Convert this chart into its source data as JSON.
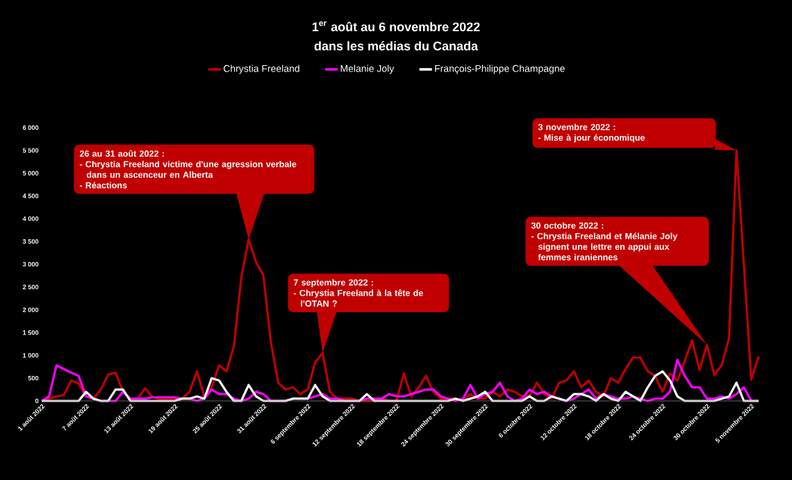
{
  "chart_data": {
    "type": "line",
    "title": "1$^{er}$ août au 6 novembre 2022",
    "subtitle": "dans les médias du Canada",
    "x": [
      "2022-08-01",
      "2022-08-02",
      "2022-08-03",
      "2022-08-04",
      "2022-08-05",
      "2022-08-06",
      "2022-08-07",
      "2022-08-08",
      "2022-08-09",
      "2022-08-10",
      "2022-08-11",
      "2022-08-12",
      "2022-08-13",
      "2022-08-14",
      "2022-08-15",
      "2022-08-16",
      "2022-08-17",
      "2022-08-18",
      "2022-08-19",
      "2022-08-20",
      "2022-08-21",
      "2022-08-22",
      "2022-08-23",
      "2022-08-24",
      "2022-08-25",
      "2022-08-26",
      "2022-08-27",
      "2022-08-28",
      "2022-08-29",
      "2022-08-30",
      "2022-08-31",
      "2022-09-01",
      "2022-09-02",
      "2022-09-03",
      "2022-09-04",
      "2022-09-05",
      "2022-09-06",
      "2022-09-07",
      "2022-09-08",
      "2022-09-09",
      "2022-09-10",
      "2022-09-11",
      "2022-09-12",
      "2022-09-13",
      "2022-09-14",
      "2022-09-15",
      "2022-09-16",
      "2022-09-17",
      "2022-09-18",
      "2022-09-19",
      "2022-09-20",
      "2022-09-21",
      "2022-09-22",
      "2022-09-23",
      "2022-09-24",
      "2022-09-25",
      "2022-09-26",
      "2022-09-27",
      "2022-09-28",
      "2022-09-29",
      "2022-09-30",
      "2022-10-01",
      "2022-10-02",
      "2022-10-03",
      "2022-10-04",
      "2022-10-05",
      "2022-10-06",
      "2022-10-07",
      "2022-10-08",
      "2022-10-09",
      "2022-10-10",
      "2022-10-11",
      "2022-10-12",
      "2022-10-13",
      "2022-10-14",
      "2022-10-15",
      "2022-10-16",
      "2022-10-17",
      "2022-10-18",
      "2022-10-19",
      "2022-10-20",
      "2022-10-21",
      "2022-10-22",
      "2022-10-23",
      "2022-10-24",
      "2022-10-25",
      "2022-10-26",
      "2022-10-27",
      "2022-10-28",
      "2022-10-29",
      "2022-10-30",
      "2022-10-31",
      "2022-11-01",
      "2022-11-02",
      "2022-11-03",
      "2022-11-04",
      "2022-11-05",
      "2022-11-06"
    ],
    "series": [
      {
        "name": "Chrystia Freeland",
        "color": "#c00000",
        "values": [
          0,
          50,
          100,
          130,
          450,
          380,
          100,
          50,
          250,
          580,
          620,
          200,
          50,
          50,
          280,
          80,
          50,
          50,
          50,
          50,
          200,
          650,
          100,
          300,
          780,
          650,
          1200,
          2700,
          3550,
          3050,
          2750,
          1300,
          400,
          250,
          300,
          150,
          250,
          850,
          1050,
          200,
          50,
          50,
          50,
          0,
          0,
          0,
          50,
          0,
          0,
          600,
          100,
          300,
          550,
          200,
          50,
          50,
          50,
          0,
          150,
          50,
          50,
          200,
          100,
          250,
          200,
          100,
          100,
          400,
          150,
          50,
          400,
          450,
          650,
          300,
          450,
          200,
          100,
          500,
          400,
          700,
          950,
          950,
          650,
          550,
          200,
          600,
          450,
          880,
          1330,
          680,
          1230,
          570,
          780,
          1380,
          5500,
          3000,
          470,
          980
        ]
      },
      {
        "name": "Melanie Joly",
        "color": "#ff00ff",
        "values": [
          0,
          100,
          780,
          700,
          620,
          550,
          100,
          50,
          0,
          0,
          0,
          200,
          50,
          50,
          50,
          80,
          80,
          80,
          80,
          50,
          50,
          0,
          50,
          250,
          150,
          150,
          50,
          0,
          50,
          200,
          150,
          0,
          0,
          0,
          50,
          50,
          50,
          100,
          150,
          50,
          50,
          0,
          0,
          0,
          50,
          50,
          50,
          150,
          100,
          100,
          150,
          200,
          250,
          250,
          100,
          50,
          0,
          50,
          350,
          50,
          150,
          200,
          400,
          100,
          0,
          50,
          250,
          150,
          200,
          100,
          50,
          0,
          50,
          150,
          250,
          50,
          150,
          100,
          50,
          50,
          100,
          50,
          0,
          50,
          50,
          200,
          900,
          550,
          300,
          300,
          50,
          50,
          100,
          50,
          150,
          300,
          0,
          0
        ]
      },
      {
        "name": "François-Philippe Champagne",
        "color": "#ffffff",
        "values": [
          0,
          0,
          0,
          0,
          0,
          0,
          200,
          50,
          0,
          0,
          250,
          250,
          0,
          0,
          0,
          0,
          0,
          0,
          0,
          50,
          50,
          100,
          50,
          500,
          450,
          200,
          0,
          0,
          350,
          100,
          0,
          0,
          0,
          0,
          50,
          50,
          50,
          350,
          100,
          0,
          0,
          0,
          0,
          0,
          150,
          0,
          0,
          0,
          0,
          0,
          0,
          0,
          0,
          0,
          0,
          0,
          50,
          0,
          50,
          100,
          200,
          0,
          0,
          0,
          0,
          0,
          100,
          0,
          0,
          100,
          50,
          0,
          150,
          150,
          100,
          0,
          150,
          50,
          0,
          200,
          100,
          0,
          300,
          550,
          650,
          450,
          100,
          0,
          0,
          0,
          0,
          0,
          50,
          100,
          400,
          0,
          0,
          0
        ]
      }
    ],
    "xticks": [
      {
        "value": "2022-08-01",
        "label": "1 août 2022"
      },
      {
        "value": "2022-08-07",
        "label": "7 août 2022"
      },
      {
        "value": "2022-08-13",
        "label": "13 août 2022"
      },
      {
        "value": "2022-08-19",
        "label": "19 août 2022"
      },
      {
        "value": "2022-08-25",
        "label": "25 août 2022"
      },
      {
        "value": "2022-08-31",
        "label": "31 août 2022"
      },
      {
        "value": "2022-09-06",
        "label": "6 septembre 2022"
      },
      {
        "value": "2022-09-12",
        "label": "12 septembre 2022"
      },
      {
        "value": "2022-09-18",
        "label": "18 septembre 2022"
      },
      {
        "value": "2022-09-24",
        "label": "24 septembre 2022"
      },
      {
        "value": "2022-09-30",
        "label": "30 septembre 2022"
      },
      {
        "value": "2022-10-06",
        "label": "6 octobre 2022"
      },
      {
        "value": "2022-10-12",
        "label": "12 octobre 2022"
      },
      {
        "value": "2022-10-18",
        "label": "18 octobre 2022"
      },
      {
        "value": "2022-10-24",
        "label": "24 octobre 2022"
      },
      {
        "value": "2022-10-30",
        "label": "30 octobre 2022"
      },
      {
        "value": "2022-11-05",
        "label": "5 novembre 2022"
      }
    ],
    "xlim": [
      "2022-08-01",
      "2022-11-06"
    ],
    "ylim": [
      0,
      6000
    ],
    "yticks": [
      0,
      500,
      {
        "value": 1000,
        "label": "1 000"
      },
      {
        "value": 1500,
        "label": "1 500"
      },
      {
        "value": 2000,
        "label": "2 000"
      },
      {
        "value": 2500,
        "label": "2 500"
      },
      {
        "value": 3000,
        "label": "3 000"
      },
      {
        "value": 3500,
        "label": "3 500"
      },
      {
        "value": 4000,
        "label": "4 000"
      },
      {
        "value": 4500,
        "label": "4 500"
      },
      {
        "value": 5000,
        "label": "5 000"
      },
      {
        "value": 5500,
        "label": "5 500"
      },
      {
        "value": 6000,
        "label": "6 000"
      }
    ],
    "legend": "top",
    "line_style": "solid",
    "annotations": [
      "26 au 31 août 2022 :",
      "- Chrystia Freeland victime d'une agression verbale dans un ascenceur en Alberta",
      "- Réactions",
      "7 septembre 2022 :",
      "- Chrystia Freeland à la tête de l'OTAN ?",
      "30 octobre 2022 :",
      "- Chrystia Freeland et Mélanie Joly signent une lettre en appui aux femmes iraniennes",
      "3 novembre 2022 :",
      "- Mise à jour économique"
    ]
  }
}
